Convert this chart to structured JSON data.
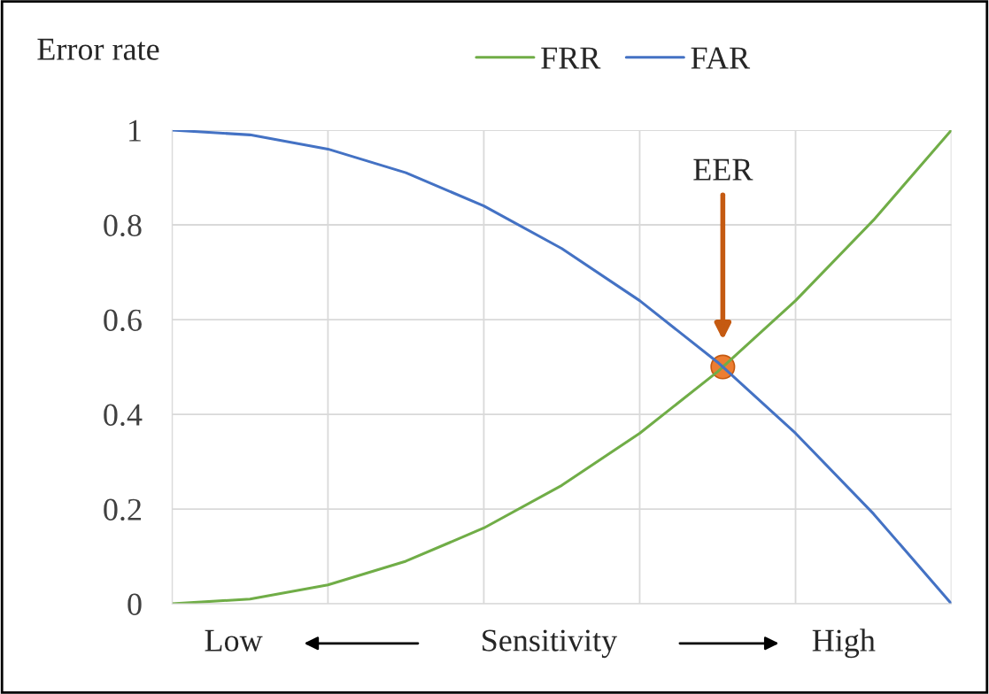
{
  "chart_data": {
    "type": "line",
    "ylabel": "Error rate",
    "xlabel": "Sensitivity",
    "categories": [
      null,
      null,
      null,
      null,
      null,
      null,
      null,
      null,
      null,
      null,
      null
    ],
    "series": [
      {
        "name": "FRR",
        "color": "#70ad47",
        "values": [
          0,
          0.01,
          0.04,
          0.09,
          0.16,
          0.25,
          0.36,
          0.49,
          0.64,
          0.81,
          1
        ]
      },
      {
        "name": "FAR",
        "color": "#4472c4",
        "values": [
          1,
          0.99,
          0.96,
          0.91,
          0.84,
          0.75,
          0.64,
          0.51,
          0.36,
          0.19,
          0
        ]
      }
    ],
    "annotations": [
      "EER",
      "Low",
      "High"
    ],
    "ylim": [
      0,
      1
    ],
    "yticks": [
      0,
      0.2,
      0.4,
      0.6,
      0.8,
      1
    ],
    "grid": true,
    "legend": "top",
    "marker": "none",
    "line_style": "solid"
  }
}
